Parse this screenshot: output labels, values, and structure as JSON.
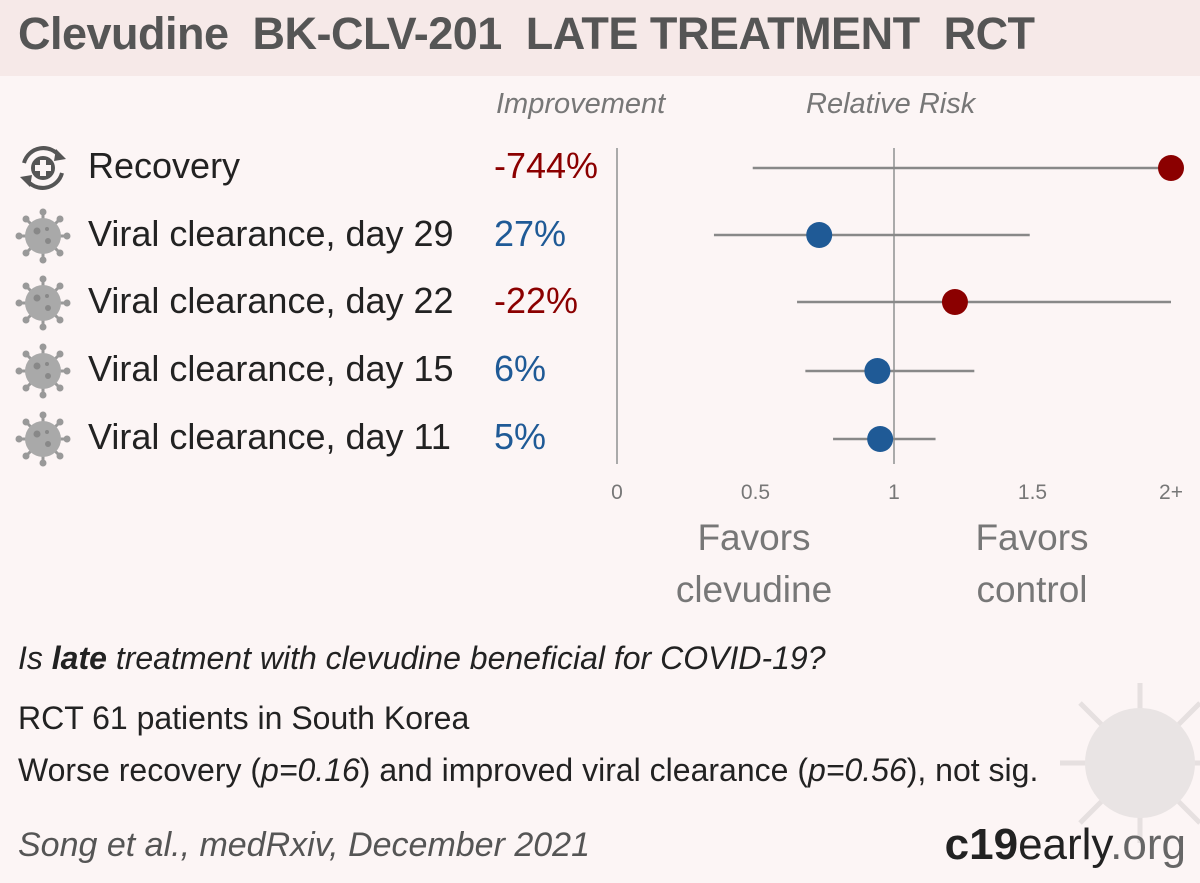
{
  "header": {
    "title": "Clevudine  BK-CLV-201  LATE TREATMENT  RCT"
  },
  "columns": {
    "improvement": "Improvement",
    "relative_risk": "Relative Risk"
  },
  "rows": [
    {
      "icon": "recovery-icon",
      "label": "Recovery",
      "improvement": "-744%",
      "color": "#8b0000"
    },
    {
      "icon": "virus-icon",
      "label": "Viral clearance, day 29",
      "improvement": "27%",
      "color": "#1f5a96"
    },
    {
      "icon": "virus-icon",
      "label": "Viral clearance, day 22",
      "improvement": "-22%",
      "color": "#8b0000"
    },
    {
      "icon": "virus-icon",
      "label": "Viral clearance, day 15",
      "improvement": "6%",
      "color": "#1f5a96"
    },
    {
      "icon": "virus-icon",
      "label": "Viral clearance, day 11",
      "improvement": "5%",
      "color": "#1f5a96"
    }
  ],
  "chart_data": {
    "type": "forest",
    "x_ticks": [
      "0",
      "0.5",
      "1",
      "1.5",
      "2+"
    ],
    "xlim": [
      0,
      2
    ],
    "reference_line": 1,
    "points": [
      {
        "label": "Recovery",
        "rr": 2.0,
        "ci_low": 0.49,
        "ci_high": 2.0,
        "color": "#8b0000"
      },
      {
        "label": "Viral clearance, day 29",
        "rr": 0.73,
        "ci_low": 0.35,
        "ci_high": 1.49,
        "color": "#1f5a96"
      },
      {
        "label": "Viral clearance, day 22",
        "rr": 1.22,
        "ci_low": 0.65,
        "ci_high": 2.0,
        "color": "#8b0000"
      },
      {
        "label": "Viral clearance, day 15",
        "rr": 0.94,
        "ci_low": 0.68,
        "ci_high": 1.29,
        "color": "#1f5a96"
      },
      {
        "label": "Viral clearance, day 11",
        "rr": 0.95,
        "ci_low": 0.78,
        "ci_high": 1.15,
        "color": "#1f5a96"
      }
    ]
  },
  "favors": {
    "left_line1": "Favors",
    "left_line2": "clevudine",
    "right_line1": "Favors",
    "right_line2": "control"
  },
  "summary": {
    "q_pre": "Is ",
    "q_em": "late",
    "q_post": " treatment with clevudine beneficial for COVID-19?",
    "line2": "RCT 61 patients in South Korea",
    "l3_a": "Worse recovery (",
    "l3_b": "p=0.16",
    "l3_c": ") and improved viral clearance (",
    "l3_d": "p=0.56",
    "l3_e": "), not sig."
  },
  "citation": "Song et al., medRxiv, December 2021",
  "brand": {
    "bold": "c19",
    "light": "early",
    "suffix": ".org"
  }
}
